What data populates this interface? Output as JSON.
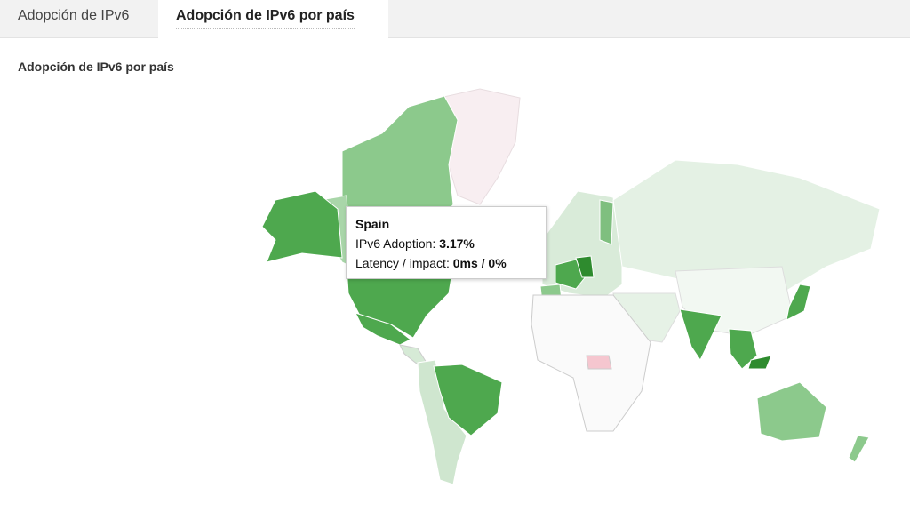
{
  "tabs": [
    {
      "label": "Adopción de IPv6"
    },
    {
      "label": "Adopción de IPv6 por país",
      "active": true
    }
  ],
  "section": {
    "title": "Adopción de IPv6 por país"
  },
  "tooltip": {
    "country": "Spain",
    "rows": [
      {
        "label": "IPv6 Adoption:",
        "value": "3.17%"
      },
      {
        "label": "Latency / impact:",
        "value": "0ms / 0%"
      }
    ]
  }
}
